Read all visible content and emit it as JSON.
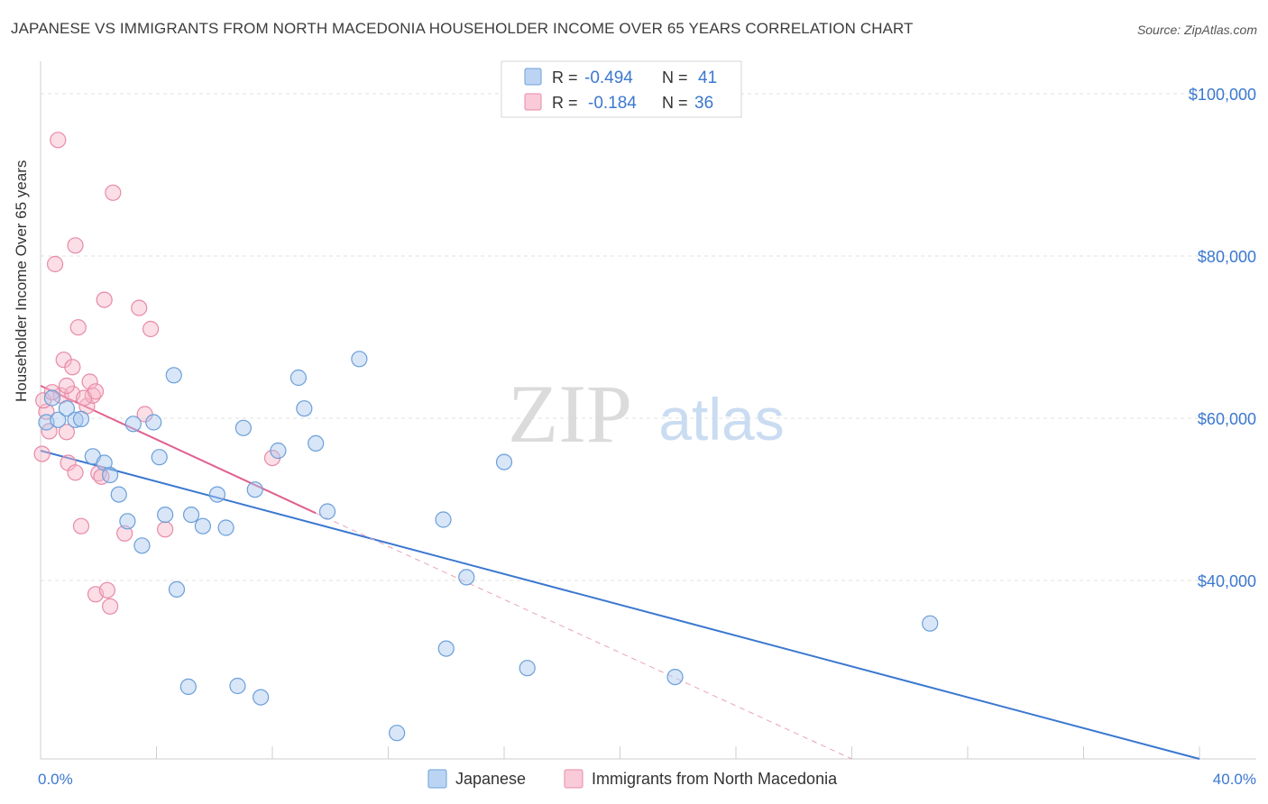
{
  "title": "JAPANESE VS IMMIGRANTS FROM NORTH MACEDONIA HOUSEHOLDER INCOME OVER 65 YEARS CORRELATION CHART",
  "source": "Source: ZipAtlas.com",
  "watermark": {
    "zip": "ZIP",
    "atlas": "atlas"
  },
  "chart_data": {
    "type": "scatter",
    "ylabel": "Householder Income Over 65 years",
    "x_tick_labels": {
      "left": "0.0%",
      "right": "40.0%"
    },
    "xlim": [
      0,
      40
    ],
    "ylim": [
      18000,
      104000
    ],
    "y_ticks": [
      {
        "value": 100000,
        "label": "$100,000"
      },
      {
        "value": 80000,
        "label": "$80,000"
      },
      {
        "value": 60000,
        "label": "$60,000"
      },
      {
        "value": 40000,
        "label": "$40,000"
      }
    ],
    "legend_box": {
      "rows": [
        {
          "r_label": "R = ",
          "r_value": "-0.494",
          "n_label": "N = ",
          "n_value": "41",
          "color": "#a8c8f0"
        },
        {
          "r_label": "R = ",
          "r_value": "-0.184",
          "n_label": "N = ",
          "n_value": "36",
          "color": "#f6b6c8"
        }
      ]
    },
    "series": [
      {
        "name": "Japanese",
        "color": "#a8c8f0",
        "stroke": "#6b9fd8",
        "line_color": "#3b78d0",
        "trend": {
          "x1": 0.0,
          "y1": 56000,
          "x2": 40.0,
          "y2": 18000
        },
        "points": [
          [
            0.2,
            59500
          ],
          [
            0.4,
            62500
          ],
          [
            0.6,
            59800
          ],
          [
            0.9,
            61200
          ],
          [
            1.2,
            59800
          ],
          [
            1.4,
            59900
          ],
          [
            1.8,
            55300
          ],
          [
            2.2,
            54500
          ],
          [
            2.4,
            53000
          ],
          [
            2.7,
            50600
          ],
          [
            3.0,
            47300
          ],
          [
            3.2,
            59300
          ],
          [
            3.5,
            44300
          ],
          [
            3.9,
            59500
          ],
          [
            4.1,
            55200
          ],
          [
            4.3,
            48100
          ],
          [
            4.6,
            65300
          ],
          [
            4.7,
            38900
          ],
          [
            5.1,
            26900
          ],
          [
            5.2,
            48100
          ],
          [
            5.6,
            46700
          ],
          [
            6.1,
            50600
          ],
          [
            6.4,
            46500
          ],
          [
            6.8,
            27000
          ],
          [
            7.0,
            58800
          ],
          [
            7.4,
            51200
          ],
          [
            7.6,
            25600
          ],
          [
            8.2,
            56000
          ],
          [
            8.9,
            65000
          ],
          [
            9.1,
            61200
          ],
          [
            9.5,
            56900
          ],
          [
            9.9,
            48500
          ],
          [
            11.0,
            67300
          ],
          [
            12.3,
            21200
          ],
          [
            13.9,
            47500
          ],
          [
            14.0,
            31600
          ],
          [
            14.7,
            40400
          ],
          [
            16.0,
            54600
          ],
          [
            16.8,
            29200
          ],
          [
            21.9,
            28100
          ],
          [
            30.7,
            34700
          ]
        ]
      },
      {
        "name": "Immigrants from North Macedonia",
        "color": "#f6b6c8",
        "stroke": "#e88aa8",
        "line_color": "#e06090",
        "trend": {
          "x1": 0.0,
          "y1": 64000,
          "x2": 9.5,
          "y2": 48300
        },
        "trend_dash": {
          "x1": 9.5,
          "y1": 48300,
          "x2": 28.0,
          "y2": 18000
        },
        "points": [
          [
            0.05,
            55600
          ],
          [
            0.2,
            60800
          ],
          [
            0.3,
            58400
          ],
          [
            0.5,
            79000
          ],
          [
            0.6,
            94300
          ],
          [
            0.7,
            62800
          ],
          [
            0.8,
            67200
          ],
          [
            0.9,
            58300
          ],
          [
            0.95,
            54500
          ],
          [
            1.1,
            66300
          ],
          [
            1.1,
            63000
          ],
          [
            1.2,
            81300
          ],
          [
            1.2,
            53300
          ],
          [
            1.3,
            71200
          ],
          [
            1.4,
            46700
          ],
          [
            1.6,
            61500
          ],
          [
            1.7,
            64500
          ],
          [
            1.8,
            62800
          ],
          [
            1.9,
            38300
          ],
          [
            2.0,
            53200
          ],
          [
            2.1,
            52800
          ],
          [
            2.2,
            74600
          ],
          [
            2.3,
            38800
          ],
          [
            2.4,
            36800
          ],
          [
            2.5,
            87800
          ],
          [
            2.9,
            45800
          ],
          [
            3.4,
            73600
          ],
          [
            3.6,
            60500
          ],
          [
            3.8,
            71000
          ],
          [
            4.3,
            46300
          ],
          [
            8.0,
            55100
          ],
          [
            0.1,
            62200
          ],
          [
            0.9,
            64000
          ],
          [
            1.5,
            62500
          ],
          [
            0.4,
            63200
          ],
          [
            1.9,
            63300
          ]
        ]
      }
    ]
  }
}
